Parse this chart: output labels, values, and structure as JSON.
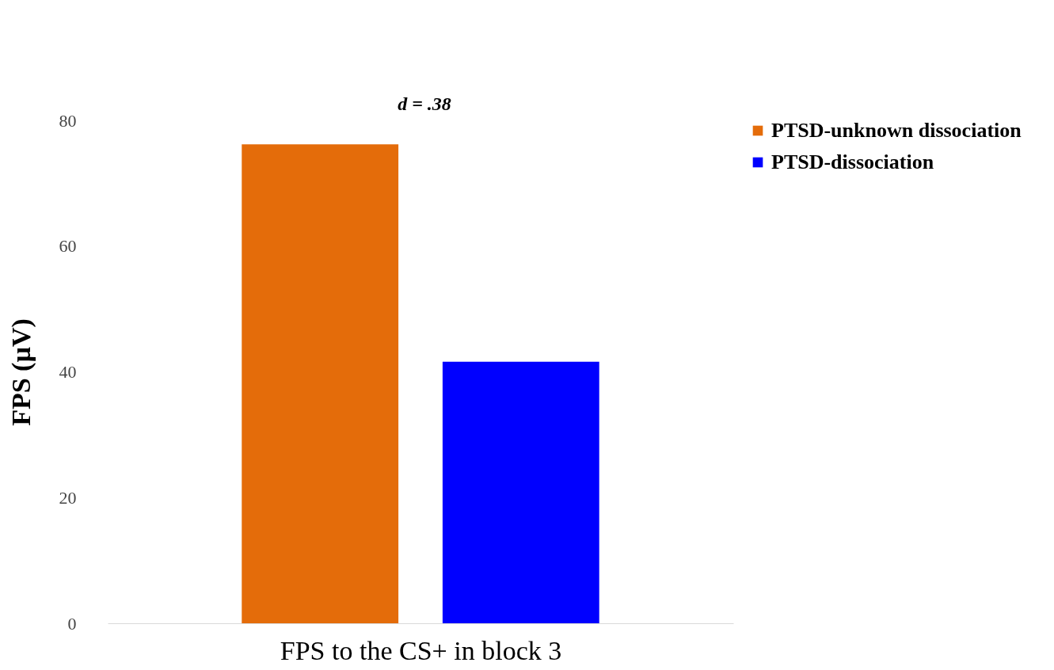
{
  "chart_data": {
    "type": "bar",
    "categories": [
      null
    ],
    "xlabel": "FPS to the CS+ in block 3",
    "ylabel": "FPS (µV)",
    "series": [
      {
        "name": "PTSD-unknown dissociation",
        "color": "#e46c0a",
        "values": [
          76.2
        ]
      },
      {
        "name": "PTSD-dissociation",
        "color": "#0000ff",
        "values": [
          41.6
        ]
      }
    ],
    "ylim": [
      0,
      80
    ],
    "yticks": [
      0,
      20,
      40,
      60,
      80
    ],
    "grid": false,
    "legend": "top right",
    "tick_labels": "y",
    "annotations": [
      "d = .38"
    ]
  }
}
